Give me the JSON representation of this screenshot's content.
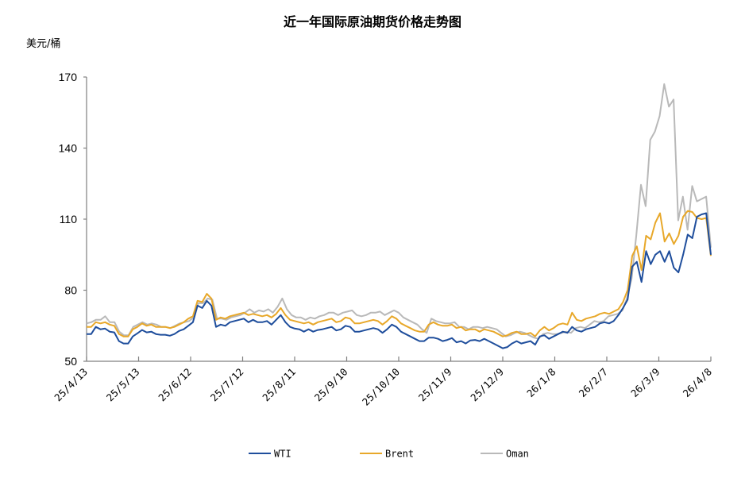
{
  "chart_data": {
    "type": "line",
    "title": "近一年国际原油期货价格走势图",
    "ylabel": "美元/桶",
    "xlabel": "",
    "ylim": [
      50,
      170
    ],
    "yticks": [
      50,
      80,
      110,
      140,
      170
    ],
    "grid": false,
    "legend_position": "bottom",
    "x_tick_labels": [
      "25/4/13",
      "25/5/13",
      "25/6/12",
      "25/7/12",
      "25/8/11",
      "25/9/10",
      "25/10/10",
      "25/11/9",
      "25/12/9",
      "26/1/8",
      "26/2/7",
      "26/3/9",
      "26/4/8"
    ],
    "x_range_days": [
      0,
      360
    ],
    "sample_interval_days": 4,
    "series": [
      {
        "name": "WTI",
        "color": "#1F4E9C",
        "values": [
          61.5,
          61.5,
          64.5,
          63.5,
          63.8,
          62.5,
          62.2,
          58.5,
          57.5,
          57.5,
          60.5,
          61.8,
          63.2,
          62.2,
          62.5,
          61.5,
          61.2,
          61.2,
          60.8,
          61.5,
          62.8,
          63.5,
          65.0,
          66.5,
          73.5,
          72.5,
          75.5,
          73.5,
          64.5,
          65.5,
          65.0,
          66.5,
          67.0,
          67.5,
          68.0,
          66.5,
          67.5,
          66.5,
          66.5,
          67.0,
          65.5,
          67.5,
          69.5,
          66.5,
          64.5,
          63.8,
          63.5,
          62.5,
          63.5,
          62.5,
          63.2,
          63.5,
          64.0,
          64.5,
          63.0,
          63.5,
          65.0,
          64.5,
          62.5,
          62.5,
          63.0,
          63.5,
          64.0,
          63.5,
          62.0,
          63.5,
          65.5,
          64.5,
          62.5,
          61.5,
          60.5,
          59.5,
          58.5,
          58.5,
          60.0,
          60.0,
          59.5,
          58.5,
          59.0,
          59.8,
          58.0,
          58.5,
          57.5,
          58.8,
          59.0,
          58.5,
          59.5,
          58.5,
          57.5,
          56.5,
          55.5,
          56.0,
          57.5,
          58.5,
          57.5,
          58.0,
          58.5,
          57.0,
          60.5,
          61.0,
          59.5,
          60.5,
          61.5,
          62.5,
          62.0,
          64.5,
          63.0,
          62.5,
          63.5,
          64.0,
          64.5,
          66.0,
          66.5,
          66.0,
          67.0,
          69.5,
          72.5,
          76.0,
          90.0,
          92.0,
          83.5,
          96.5,
          91.0,
          95.0,
          96.5,
          92.0,
          96.5,
          89.5,
          87.5,
          95.0,
          103.5,
          102.0,
          111.0,
          112.0,
          112.5,
          95.0
        ]
      },
      {
        "name": "Brent",
        "color": "#E8A82A",
        "values": [
          64.5,
          64.5,
          66.5,
          66.0,
          66.5,
          65.5,
          65.0,
          61.5,
          60.5,
          60.5,
          63.5,
          64.5,
          66.0,
          65.0,
          65.5,
          64.5,
          64.5,
          64.5,
          64.0,
          64.5,
          65.5,
          66.5,
          68.0,
          69.0,
          75.5,
          75.0,
          78.5,
          76.5,
          67.5,
          68.5,
          68.0,
          69.0,
          69.5,
          70.0,
          70.5,
          69.5,
          70.0,
          69.5,
          69.0,
          69.5,
          68.5,
          70.0,
          72.5,
          69.5,
          67.5,
          67.0,
          66.5,
          66.0,
          66.5,
          65.5,
          66.5,
          67.0,
          67.5,
          68.0,
          66.5,
          67.0,
          68.5,
          68.0,
          66.0,
          66.0,
          66.5,
          67.0,
          67.5,
          67.0,
          65.5,
          67.0,
          69.0,
          68.0,
          66.0,
          65.0,
          64.0,
          63.0,
          62.5,
          62.5,
          65.5,
          66.5,
          65.5,
          65.0,
          65.0,
          65.5,
          64.0,
          64.5,
          63.0,
          63.5,
          63.5,
          62.5,
          63.5,
          63.0,
          62.5,
          61.5,
          60.5,
          61.0,
          62.0,
          62.5,
          61.5,
          61.5,
          62.0,
          60.5,
          63.0,
          64.5,
          63.0,
          64.0,
          65.5,
          66.0,
          65.5,
          70.5,
          67.5,
          67.0,
          68.0,
          68.5,
          69.0,
          70.0,
          70.5,
          70.0,
          71.0,
          72.0,
          75.0,
          80.0,
          94.5,
          98.5,
          88.5,
          103.0,
          101.5,
          108.5,
          112.5,
          100.5,
          104.0,
          99.5,
          103.0,
          111.0,
          113.5,
          113.0,
          110.5,
          110.0,
          110.5,
          94.5
        ]
      },
      {
        "name": "Oman",
        "color": "#B9B9B9",
        "values": [
          66.0,
          66.5,
          67.5,
          67.5,
          69.0,
          66.5,
          66.5,
          62.5,
          61.0,
          61.0,
          64.5,
          65.5,
          66.5,
          65.5,
          66.0,
          65.5,
          64.5,
          64.5,
          64.0,
          65.0,
          66.0,
          66.5,
          67.0,
          68.5,
          74.5,
          74.5,
          76.5,
          76.0,
          68.0,
          68.0,
          67.5,
          68.5,
          69.0,
          69.5,
          70.5,
          72.0,
          70.5,
          71.5,
          71.0,
          72.0,
          70.5,
          73.0,
          76.5,
          72.0,
          69.5,
          68.5,
          68.5,
          67.5,
          68.5,
          68.0,
          69.0,
          69.5,
          70.5,
          70.5,
          69.5,
          70.5,
          71.0,
          71.5,
          69.5,
          69.0,
          69.5,
          70.5,
          70.5,
          71.0,
          69.5,
          70.5,
          71.5,
          70.5,
          68.5,
          67.5,
          66.5,
          65.5,
          63.5,
          62.0,
          68.0,
          67.0,
          66.5,
          66.0,
          66.0,
          66.5,
          64.5,
          64.5,
          63.5,
          64.5,
          64.5,
          64.0,
          64.5,
          64.0,
          63.5,
          62.0,
          60.5,
          61.0,
          62.0,
          62.5,
          62.0,
          61.0,
          60.0,
          59.5,
          61.5,
          62.0,
          61.5,
          61.5,
          62.0,
          62.5,
          62.0,
          64.0,
          64.5,
          64.0,
          65.5,
          67.0,
          66.5,
          67.0,
          69.0,
          69.5,
          70.0,
          71.5,
          76.5,
          85.0,
          103.0,
          124.5,
          115.5,
          143.5,
          147.0,
          153.5,
          167.0,
          157.5,
          160.5,
          109.5,
          119.5,
          105.5,
          124.0,
          117.5,
          118.5,
          119.5,
          98.0
        ]
      }
    ]
  },
  "title": "近一年国际原油期货价格走势图",
  "y_unit": "美元/桶",
  "legend": [
    {
      "label": "WTI",
      "color": "#1F4E9C"
    },
    {
      "label": "Brent",
      "color": "#E8A82A"
    },
    {
      "label": "Oman",
      "color": "#B9B9B9"
    }
  ]
}
